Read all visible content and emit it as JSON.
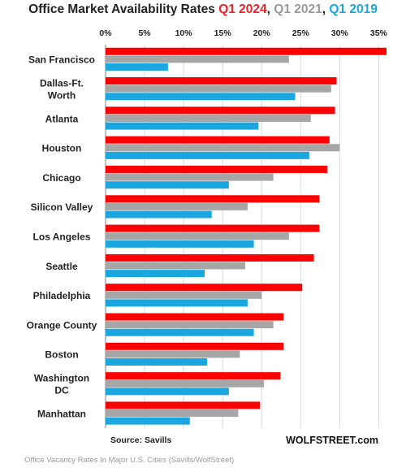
{
  "chart_data": {
    "type": "bar",
    "orientation": "horizontal",
    "title": "Office Market Availability Rates",
    "categories": [
      "San Francisco",
      "Dallas-Ft. Worth",
      "Atlanta",
      "Houston",
      "Chicago",
      "Silicon Valley",
      "Los Angeles",
      "Seattle",
      "Philadelphia",
      "Orange County",
      "Boston",
      "Washington DC",
      "Manhattan"
    ],
    "category_lines": [
      [
        "San Francisco"
      ],
      [
        "Dallas-Ft.",
        "Worth"
      ],
      [
        "Atlanta"
      ],
      [
        "Houston"
      ],
      [
        "Chicago"
      ],
      [
        "Silicon Valley"
      ],
      [
        "Los Angeles"
      ],
      [
        "Seattle"
      ],
      [
        "Philadelphia"
      ],
      [
        "Orange County"
      ],
      [
        "Boston"
      ],
      [
        "Washington",
        "DC"
      ],
      [
        "Manhattan"
      ]
    ],
    "series": [
      {
        "name": "Q1 2024",
        "color": "#ff0000",
        "values": [
          36.0,
          29.6,
          29.4,
          28.7,
          28.4,
          27.4,
          27.4,
          26.7,
          25.2,
          22.8,
          22.8,
          22.4,
          19.8
        ]
      },
      {
        "name": "Q1 2021",
        "color": "#a6a6a6",
        "values": [
          23.5,
          28.9,
          26.3,
          30.0,
          21.5,
          18.2,
          23.5,
          17.9,
          20.0,
          21.5,
          17.2,
          20.3,
          17.0
        ]
      },
      {
        "name": "Q1 2019",
        "color": "#1aa7e0",
        "values": [
          8.0,
          24.3,
          19.6,
          26.1,
          15.8,
          13.6,
          19.0,
          12.7,
          18.2,
          19.0,
          13.0,
          15.8,
          10.8
        ]
      }
    ],
    "xlim": [
      0,
      36
    ],
    "x_ticks": [
      "0%",
      "5%",
      "10%",
      "15%",
      "20%",
      "25%",
      "30%",
      "35%"
    ],
    "x_tick_values": [
      0,
      5,
      10,
      15,
      20,
      25,
      30,
      35
    ],
    "xaxis_position": "top",
    "grid": true,
    "legend": "in title",
    "source": "Source: Savills",
    "watermark": "WOLFSTREET.com"
  },
  "title_parts": {
    "main": "Office Market Availability Rates",
    "sep": ", "
  },
  "caption": "Office Vacancy Rates In Major U.S. Cities (Savills/WolfStreet)"
}
